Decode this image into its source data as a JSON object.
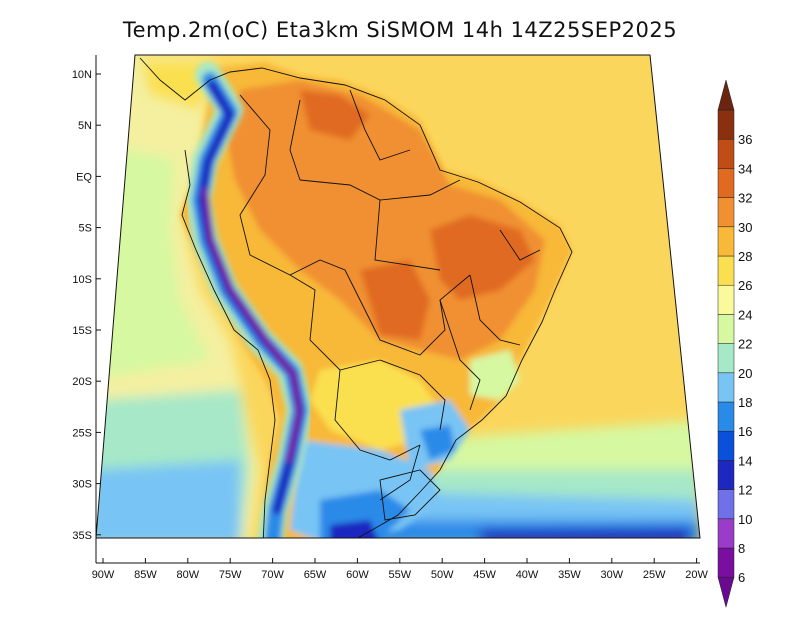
{
  "title": "Temp.2m(oC) Eta3km SiSMOM 14h 14Z25SEP2025",
  "lat_labels": [
    "10N",
    "5N",
    "EQ",
    "5S",
    "10S",
    "15S",
    "20S",
    "25S",
    "30S",
    "35S"
  ],
  "lon_labels": [
    "90W",
    "85W",
    "80W",
    "75W",
    "70W",
    "65W",
    "60W",
    "55W",
    "50W",
    "45W",
    "40W",
    "35W",
    "30W",
    "25W",
    "20W"
  ],
  "colorbar": {
    "labels": [
      "6",
      "8",
      "10",
      "12",
      "14",
      "16",
      "18",
      "20",
      "22",
      "24",
      "26",
      "28",
      "30",
      "32",
      "34",
      "36"
    ],
    "colors": [
      "#7a0e9e",
      "#9a3cc8",
      "#7070e8",
      "#1c28c0",
      "#0a50d8",
      "#2a8ae8",
      "#78c4f4",
      "#a6e8c8",
      "#d6f8a0",
      "#fafa9c",
      "#fae050",
      "#f8b838",
      "#f09030",
      "#e06a20",
      "#c04c16",
      "#8a3010"
    ],
    "low_color": "#6a0a90",
    "high_color": "#6a2410"
  },
  "map": {
    "ocean_bg": "#fbd65c",
    "pacific_color": "#f4f0a0"
  }
}
